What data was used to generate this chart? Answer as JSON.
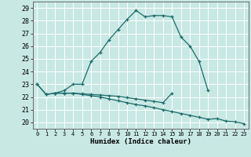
{
  "title": "",
  "xlabel": "Humidex (Indice chaleur)",
  "xlim": [
    -0.5,
    23.5
  ],
  "ylim": [
    19.5,
    29.5
  ],
  "xticks": [
    0,
    1,
    2,
    3,
    4,
    5,
    6,
    7,
    8,
    9,
    10,
    11,
    12,
    13,
    14,
    15,
    16,
    17,
    18,
    19,
    20,
    21,
    22,
    23
  ],
  "yticks": [
    20,
    21,
    22,
    23,
    24,
    25,
    26,
    27,
    28,
    29
  ],
  "bg_color": "#c8e8e4",
  "grid_color": "#ffffff",
  "line_color": "#1a6b6b",
  "line1_x": [
    0,
    1,
    2,
    3,
    4,
    5,
    6,
    7,
    8,
    9,
    10,
    11,
    12,
    13,
    14,
    15,
    16,
    17,
    18,
    19
  ],
  "line1_y": [
    23.0,
    22.2,
    22.3,
    22.5,
    23.0,
    23.0,
    24.8,
    25.5,
    26.5,
    27.3,
    28.1,
    28.8,
    28.3,
    28.4,
    28.4,
    28.3,
    26.7,
    26.0,
    24.8,
    22.5
  ],
  "line2_x": [
    0,
    1,
    2,
    3,
    4,
    5,
    6,
    7,
    8,
    9,
    10,
    11,
    12,
    13,
    14,
    15,
    16,
    17,
    18,
    19,
    20,
    21,
    22,
    23
  ],
  "line2_y": [
    23.0,
    22.2,
    22.3,
    22.3,
    22.3,
    22.2,
    22.1,
    22.0,
    21.85,
    21.7,
    21.55,
    21.4,
    21.3,
    21.15,
    21.0,
    20.85,
    20.7,
    20.55,
    20.4,
    20.25,
    20.3,
    20.1,
    20.05,
    19.9
  ],
  "line3_x": [
    2,
    3,
    4,
    5,
    6,
    7,
    8,
    9,
    10,
    11,
    12,
    13,
    14,
    15
  ],
  "line3_y": [
    22.3,
    22.3,
    22.3,
    22.25,
    22.2,
    22.15,
    22.1,
    22.05,
    21.95,
    21.85,
    21.75,
    21.65,
    21.55,
    22.3
  ]
}
